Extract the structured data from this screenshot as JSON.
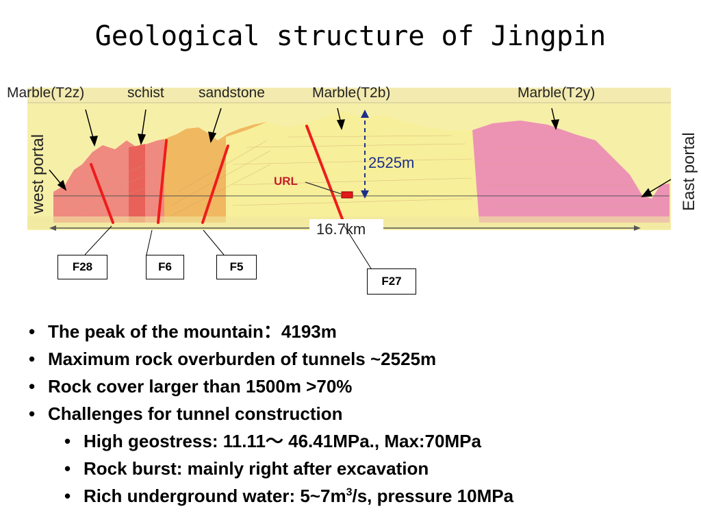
{
  "title": "Geological structure of Jingpin",
  "diagram": {
    "labels": {
      "marble_t2z": "Marble(T2z)",
      "schist": "schist",
      "sandstone": "sandstone",
      "marble_t2b": "Marble(T2b)",
      "marble_t2y": "Marble(T2y)",
      "west_portal": "west portal",
      "east_portal": "East portal",
      "overburden": "2525m",
      "url": "URL",
      "length": "16.7km"
    },
    "faults": [
      "F28",
      "F6",
      "F5",
      "F27"
    ],
    "colors": {
      "background": "#f6efa8",
      "marble_t2z": "#ef8a80",
      "schist": "#e96b60",
      "sandstone": "#f0b860",
      "marble_t2b": "#f7ef9a",
      "marble_t2y": "#ec93b4",
      "fault_line": "#ee1c1c",
      "url_marker": "#e21a1a"
    }
  },
  "bullets": [
    {
      "text": "The peak of the mountain：4193m",
      "level": 1
    },
    {
      "text": "Maximum rock overburden of tunnels  ~2525m",
      "level": 1
    },
    {
      "text": "Rock cover larger than 1500m >70%",
      "level": 1
    },
    {
      "text": "Challenges for tunnel construction",
      "level": 1
    },
    {
      "text": "High geostress: 11.11～ 46.41MPa., Max:70MPa",
      "level": 2
    },
    {
      "text": "Rock burst: mainly right after excavation",
      "level": 2
    },
    {
      "text_before_sup": "Rich underground water: 5~7m",
      "sup": "3",
      "text_after_sup": "/s, pressure 10MPa",
      "level": 2
    }
  ]
}
